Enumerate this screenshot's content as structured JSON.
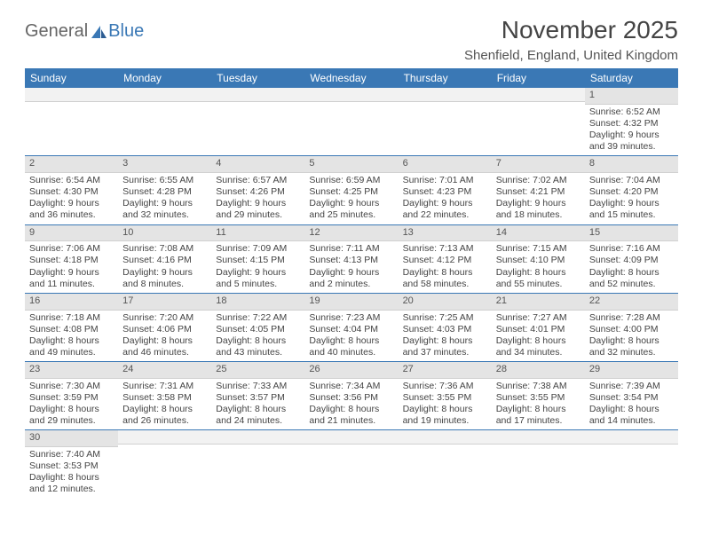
{
  "logo": {
    "general": "General",
    "blue": "Blue"
  },
  "title": "November 2025",
  "location": "Shenfield, England, United Kingdom",
  "colors": {
    "header_bg": "#3a78b5",
    "header_fg": "#ffffff",
    "daynum_bg": "#e4e4e4",
    "row_divider": "#3a78b5",
    "page_bg": "#ffffff",
    "text": "#444444"
  },
  "headers": [
    "Sunday",
    "Monday",
    "Tuesday",
    "Wednesday",
    "Thursday",
    "Friday",
    "Saturday"
  ],
  "weeks": [
    [
      {
        "empty": true
      },
      {
        "empty": true
      },
      {
        "empty": true
      },
      {
        "empty": true
      },
      {
        "empty": true
      },
      {
        "empty": true
      },
      {
        "day": "1",
        "sunrise": "Sunrise: 6:52 AM",
        "sunset": "Sunset: 4:32 PM",
        "daylight1": "Daylight: 9 hours",
        "daylight2": "and 39 minutes."
      }
    ],
    [
      {
        "day": "2",
        "sunrise": "Sunrise: 6:54 AM",
        "sunset": "Sunset: 4:30 PM",
        "daylight1": "Daylight: 9 hours",
        "daylight2": "and 36 minutes."
      },
      {
        "day": "3",
        "sunrise": "Sunrise: 6:55 AM",
        "sunset": "Sunset: 4:28 PM",
        "daylight1": "Daylight: 9 hours",
        "daylight2": "and 32 minutes."
      },
      {
        "day": "4",
        "sunrise": "Sunrise: 6:57 AM",
        "sunset": "Sunset: 4:26 PM",
        "daylight1": "Daylight: 9 hours",
        "daylight2": "and 29 minutes."
      },
      {
        "day": "5",
        "sunrise": "Sunrise: 6:59 AM",
        "sunset": "Sunset: 4:25 PM",
        "daylight1": "Daylight: 9 hours",
        "daylight2": "and 25 minutes."
      },
      {
        "day": "6",
        "sunrise": "Sunrise: 7:01 AM",
        "sunset": "Sunset: 4:23 PM",
        "daylight1": "Daylight: 9 hours",
        "daylight2": "and 22 minutes."
      },
      {
        "day": "7",
        "sunrise": "Sunrise: 7:02 AM",
        "sunset": "Sunset: 4:21 PM",
        "daylight1": "Daylight: 9 hours",
        "daylight2": "and 18 minutes."
      },
      {
        "day": "8",
        "sunrise": "Sunrise: 7:04 AM",
        "sunset": "Sunset: 4:20 PM",
        "daylight1": "Daylight: 9 hours",
        "daylight2": "and 15 minutes."
      }
    ],
    [
      {
        "day": "9",
        "sunrise": "Sunrise: 7:06 AM",
        "sunset": "Sunset: 4:18 PM",
        "daylight1": "Daylight: 9 hours",
        "daylight2": "and 11 minutes."
      },
      {
        "day": "10",
        "sunrise": "Sunrise: 7:08 AM",
        "sunset": "Sunset: 4:16 PM",
        "daylight1": "Daylight: 9 hours",
        "daylight2": "and 8 minutes."
      },
      {
        "day": "11",
        "sunrise": "Sunrise: 7:09 AM",
        "sunset": "Sunset: 4:15 PM",
        "daylight1": "Daylight: 9 hours",
        "daylight2": "and 5 minutes."
      },
      {
        "day": "12",
        "sunrise": "Sunrise: 7:11 AM",
        "sunset": "Sunset: 4:13 PM",
        "daylight1": "Daylight: 9 hours",
        "daylight2": "and 2 minutes."
      },
      {
        "day": "13",
        "sunrise": "Sunrise: 7:13 AM",
        "sunset": "Sunset: 4:12 PM",
        "daylight1": "Daylight: 8 hours",
        "daylight2": "and 58 minutes."
      },
      {
        "day": "14",
        "sunrise": "Sunrise: 7:15 AM",
        "sunset": "Sunset: 4:10 PM",
        "daylight1": "Daylight: 8 hours",
        "daylight2": "and 55 minutes."
      },
      {
        "day": "15",
        "sunrise": "Sunrise: 7:16 AM",
        "sunset": "Sunset: 4:09 PM",
        "daylight1": "Daylight: 8 hours",
        "daylight2": "and 52 minutes."
      }
    ],
    [
      {
        "day": "16",
        "sunrise": "Sunrise: 7:18 AM",
        "sunset": "Sunset: 4:08 PM",
        "daylight1": "Daylight: 8 hours",
        "daylight2": "and 49 minutes."
      },
      {
        "day": "17",
        "sunrise": "Sunrise: 7:20 AM",
        "sunset": "Sunset: 4:06 PM",
        "daylight1": "Daylight: 8 hours",
        "daylight2": "and 46 minutes."
      },
      {
        "day": "18",
        "sunrise": "Sunrise: 7:22 AM",
        "sunset": "Sunset: 4:05 PM",
        "daylight1": "Daylight: 8 hours",
        "daylight2": "and 43 minutes."
      },
      {
        "day": "19",
        "sunrise": "Sunrise: 7:23 AM",
        "sunset": "Sunset: 4:04 PM",
        "daylight1": "Daylight: 8 hours",
        "daylight2": "and 40 minutes."
      },
      {
        "day": "20",
        "sunrise": "Sunrise: 7:25 AM",
        "sunset": "Sunset: 4:03 PM",
        "daylight1": "Daylight: 8 hours",
        "daylight2": "and 37 minutes."
      },
      {
        "day": "21",
        "sunrise": "Sunrise: 7:27 AM",
        "sunset": "Sunset: 4:01 PM",
        "daylight1": "Daylight: 8 hours",
        "daylight2": "and 34 minutes."
      },
      {
        "day": "22",
        "sunrise": "Sunrise: 7:28 AM",
        "sunset": "Sunset: 4:00 PM",
        "daylight1": "Daylight: 8 hours",
        "daylight2": "and 32 minutes."
      }
    ],
    [
      {
        "day": "23",
        "sunrise": "Sunrise: 7:30 AM",
        "sunset": "Sunset: 3:59 PM",
        "daylight1": "Daylight: 8 hours",
        "daylight2": "and 29 minutes."
      },
      {
        "day": "24",
        "sunrise": "Sunrise: 7:31 AM",
        "sunset": "Sunset: 3:58 PM",
        "daylight1": "Daylight: 8 hours",
        "daylight2": "and 26 minutes."
      },
      {
        "day": "25",
        "sunrise": "Sunrise: 7:33 AM",
        "sunset": "Sunset: 3:57 PM",
        "daylight1": "Daylight: 8 hours",
        "daylight2": "and 24 minutes."
      },
      {
        "day": "26",
        "sunrise": "Sunrise: 7:34 AM",
        "sunset": "Sunset: 3:56 PM",
        "daylight1": "Daylight: 8 hours",
        "daylight2": "and 21 minutes."
      },
      {
        "day": "27",
        "sunrise": "Sunrise: 7:36 AM",
        "sunset": "Sunset: 3:55 PM",
        "daylight1": "Daylight: 8 hours",
        "daylight2": "and 19 minutes."
      },
      {
        "day": "28",
        "sunrise": "Sunrise: 7:38 AM",
        "sunset": "Sunset: 3:55 PM",
        "daylight1": "Daylight: 8 hours",
        "daylight2": "and 17 minutes."
      },
      {
        "day": "29",
        "sunrise": "Sunrise: 7:39 AM",
        "sunset": "Sunset: 3:54 PM",
        "daylight1": "Daylight: 8 hours",
        "daylight2": "and 14 minutes."
      }
    ],
    [
      {
        "day": "30",
        "sunrise": "Sunrise: 7:40 AM",
        "sunset": "Sunset: 3:53 PM",
        "daylight1": "Daylight: 8 hours",
        "daylight2": "and 12 minutes."
      },
      {
        "empty": true
      },
      {
        "empty": true
      },
      {
        "empty": true
      },
      {
        "empty": true
      },
      {
        "empty": true
      },
      {
        "empty": true
      }
    ]
  ]
}
